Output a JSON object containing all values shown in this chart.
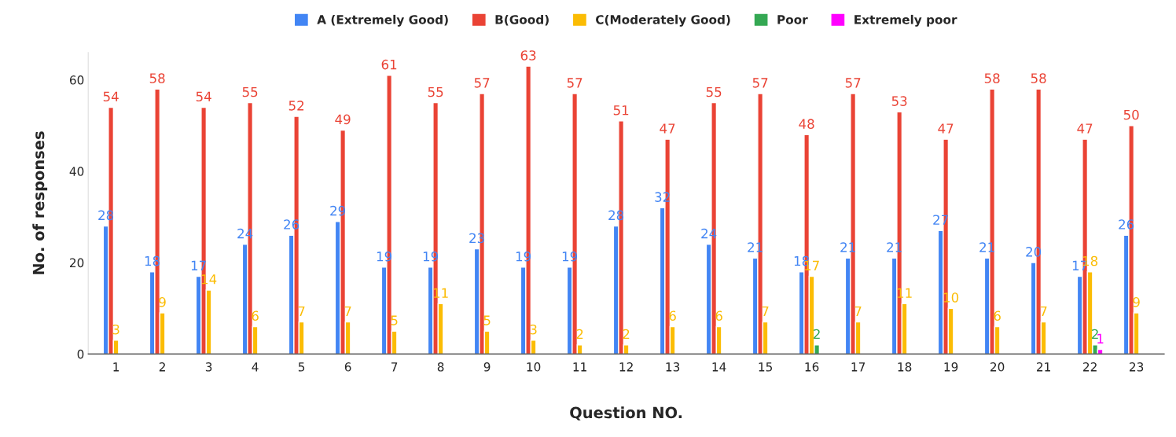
{
  "chart_data": {
    "type": "bar",
    "xlabel": "Question NO.",
    "ylabel": "No. of responses",
    "categories": [
      "1",
      "2",
      "3",
      "4",
      "5",
      "6",
      "7",
      "8",
      "9",
      "10",
      "11",
      "12",
      "13",
      "14",
      "15",
      "16",
      "17",
      "18",
      "19",
      "20",
      "21",
      "22",
      "23"
    ],
    "series": [
      {
        "name": "A (Extremely Good)",
        "color": "#4285f4",
        "values": [
          28,
          18,
          17,
          24,
          26,
          29,
          19,
          19,
          23,
          19,
          19,
          28,
          32,
          24,
          21,
          18,
          21,
          21,
          27,
          21,
          20,
          17,
          26
        ]
      },
      {
        "name": "B(Good)",
        "color": "#ea4335",
        "values": [
          54,
          58,
          54,
          55,
          52,
          49,
          61,
          55,
          57,
          63,
          57,
          51,
          47,
          55,
          57,
          48,
          57,
          53,
          47,
          58,
          58,
          47,
          50
        ]
      },
      {
        "name": "C(Moderately Good)",
        "color": "#fbbc04",
        "values": [
          3,
          9,
          14,
          6,
          7,
          7,
          5,
          11,
          5,
          3,
          2,
          2,
          6,
          6,
          7,
          17,
          7,
          11,
          10,
          6,
          7,
          18,
          9
        ]
      },
      {
        "name": "Poor",
        "color": "#34a853",
        "values": [
          null,
          null,
          null,
          null,
          null,
          null,
          null,
          null,
          null,
          null,
          null,
          null,
          null,
          null,
          null,
          2,
          null,
          null,
          null,
          null,
          null,
          2,
          null
        ]
      },
      {
        "name": "Extremely poor",
        "color": "#ff00ff",
        "values": [
          null,
          null,
          null,
          null,
          null,
          null,
          null,
          null,
          null,
          null,
          null,
          null,
          null,
          null,
          null,
          null,
          null,
          null,
          null,
          null,
          null,
          1,
          null
        ]
      }
    ],
    "ylim": [
      0,
      66
    ],
    "yticks": [
      0,
      20,
      40,
      60
    ],
    "grid": false,
    "legend": "top",
    "data_labels": true
  }
}
